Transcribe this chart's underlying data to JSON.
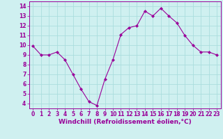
{
  "x": [
    0,
    1,
    2,
    3,
    4,
    5,
    6,
    7,
    8,
    9,
    10,
    11,
    12,
    13,
    14,
    15,
    16,
    17,
    18,
    19,
    20,
    21,
    22,
    23
  ],
  "y": [
    9.9,
    9.0,
    9.0,
    9.3,
    8.5,
    7.0,
    5.5,
    4.2,
    3.8,
    6.5,
    8.5,
    11.1,
    11.8,
    12.0,
    13.5,
    13.0,
    13.8,
    13.0,
    12.3,
    11.0,
    10.0,
    9.3,
    9.3,
    9.0
  ],
  "line_color": "#990099",
  "marker": "D",
  "marker_size": 2.2,
  "bg_color": "#cff0f0",
  "grid_color": "#aadddd",
  "xlabel": "Windchill (Refroidissement éolien,°C)",
  "ylabel": "",
  "xlim": [
    -0.5,
    23.5
  ],
  "ylim": [
    3.5,
    14.5
  ],
  "yticks": [
    4,
    5,
    6,
    7,
    8,
    9,
    10,
    11,
    12,
    13,
    14
  ],
  "xticks": [
    0,
    1,
    2,
    3,
    4,
    5,
    6,
    7,
    8,
    9,
    10,
    11,
    12,
    13,
    14,
    15,
    16,
    17,
    18,
    19,
    20,
    21,
    22,
    23
  ],
  "text_color": "#990099",
  "tick_fontsize": 5.5,
  "label_fontsize": 6.5
}
